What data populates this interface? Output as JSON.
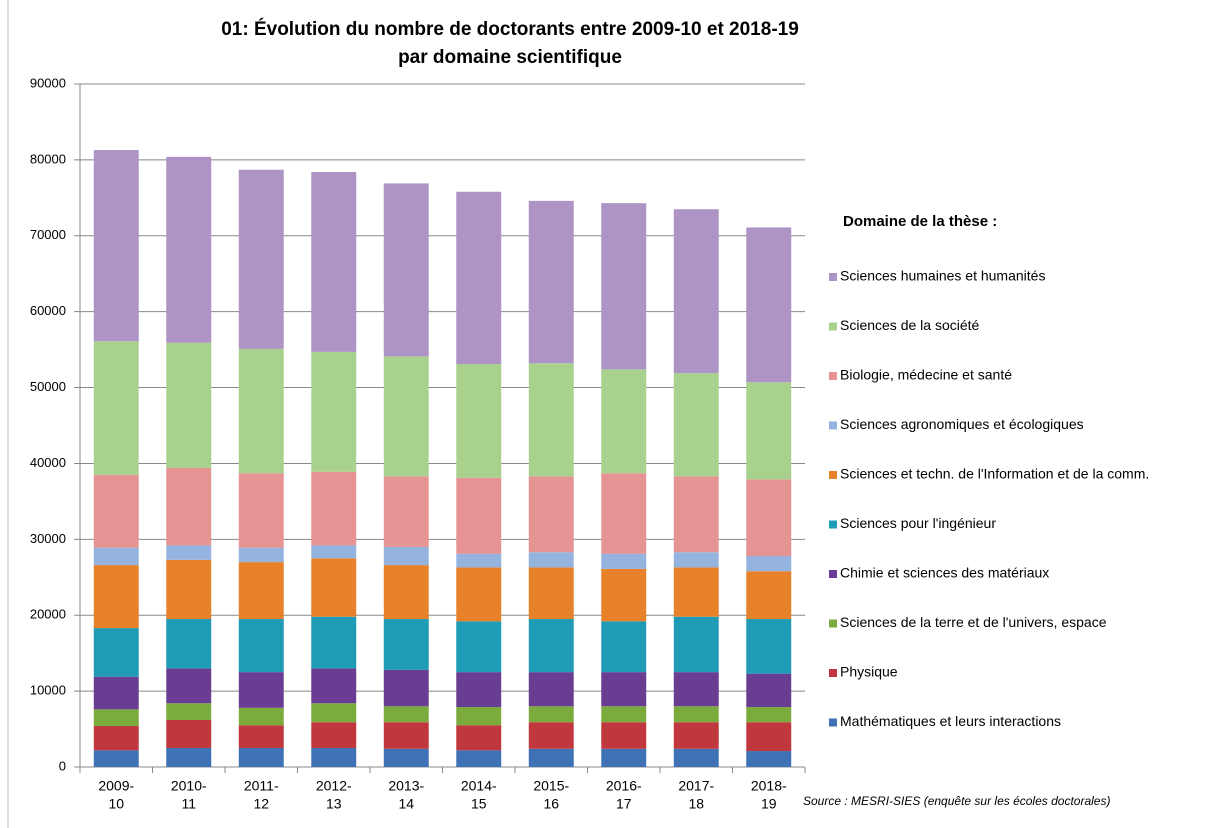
{
  "chart_data": {
    "type": "stacked-bar",
    "title": [
      "01: Évolution du nombre de doctorants entre 2009-10 et 2018-19",
      "par domaine scientifique"
    ],
    "categories": [
      [
        "2009-",
        "10"
      ],
      [
        "2010-",
        "11"
      ],
      [
        "2011-",
        "12"
      ],
      [
        "2012-",
        "13"
      ],
      [
        "2013-",
        "14"
      ],
      [
        "2014-",
        "15"
      ],
      [
        "2015-",
        "16"
      ],
      [
        "2016-",
        "17"
      ],
      [
        "2017-",
        "18"
      ],
      [
        "2018-",
        "19"
      ]
    ],
    "series": [
      {
        "name": "Mathématiques et leurs interactions",
        "color": "#3f72b5",
        "values": [
          2200,
          2500,
          2500,
          2500,
          2400,
          2200,
          2400,
          2400,
          2400,
          2100
        ]
      },
      {
        "name": "Physique",
        "color": "#c0383d",
        "values": [
          3200,
          3700,
          3000,
          3400,
          3500,
          3300,
          3500,
          3500,
          3500,
          3800
        ]
      },
      {
        "name": "Sciences de la terre et de l'univers, espace",
        "color": "#7aab3c",
        "values": [
          2200,
          2200,
          2300,
          2500,
          2100,
          2400,
          2100,
          2100,
          2100,
          2000
        ]
      },
      {
        "name": "Chimie et sciences des matériaux",
        "color": "#6a3d95",
        "values": [
          4300,
          4600,
          4700,
          4600,
          4800,
          4600,
          4500,
          4500,
          4500,
          4400
        ]
      },
      {
        "name": "Sciences pour l'ingénieur",
        "color": "#1f9bb5",
        "values": [
          6400,
          6500,
          7000,
          6800,
          6700,
          6700,
          7000,
          6700,
          7300,
          7200
        ]
      },
      {
        "name": "Sciences et techn. de l'Information et de la comm.",
        "color": "#e8822a",
        "values": [
          8300,
          7800,
          7500,
          7700,
          7100,
          7100,
          6800,
          6900,
          6500,
          6300
        ]
      },
      {
        "name": "Sciences agronomiques et écologiques",
        "color": "#94b3de",
        "values": [
          2300,
          1900,
          1900,
          1700,
          2400,
          1800,
          2000,
          2000,
          2000,
          2000
        ]
      },
      {
        "name": "Biologie, médecine et santé",
        "color": "#e59393",
        "values": [
          9600,
          10200,
          9800,
          9700,
          9300,
          10000,
          10000,
          10600,
          10000,
          10100
        ]
      },
      {
        "name": "Sciences de la société",
        "color": "#a9d18e",
        "values": [
          17600,
          16500,
          16400,
          15800,
          15800,
          15000,
          14900,
          13700,
          13600,
          12800
        ]
      },
      {
        "name": "Sciences humaines et humanités",
        "color": "#ae93c5",
        "values": [
          25200,
          24500,
          23600,
          23700,
          22800,
          22700,
          21400,
          21900,
          21600,
          20400
        ]
      }
    ],
    "legend_title": "Domaine de la thèse :",
    "source": "Source : MESRI-SIES (enquête sur les écoles doctorales)",
    "ylim": [
      0,
      90000
    ],
    "yticks": [
      0,
      10000,
      20000,
      30000,
      40000,
      50000,
      60000,
      70000,
      80000,
      90000
    ],
    "grid": true,
    "legend_position": "right"
  }
}
